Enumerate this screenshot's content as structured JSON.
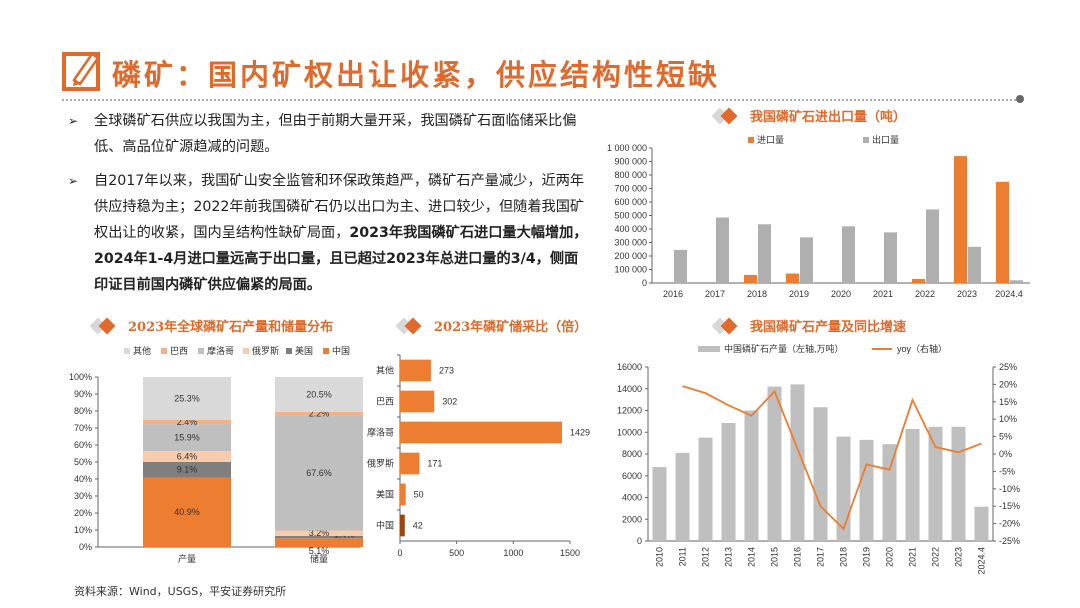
{
  "header": {
    "title": "磷矿：国内矿权出让收紧，供应结构性短缺",
    "icon": "pencil-checkbox-icon"
  },
  "bullets": [
    {
      "icon": "arrow-bullet-icon",
      "symbol": "➢",
      "text": "全球磷矿石供应以我国为主，但由于前期大量开采，我国磷矿石面临储采比偏低、高品位矿源趋减的问题。",
      "bold": ""
    },
    {
      "icon": "arrow-bullet-icon",
      "symbol": "➢",
      "text": "自2017年以来，我国矿山安全监管和环保政策趋严，磷矿石产量减少，近两年供应持稳为主；2022年前我国磷矿石仍以出口为主、进口较少，但随着我国矿权出让的收紧，国内呈结构性缺矿局面，",
      "bold": "2023年我国磷矿石进口量大幅增加，2024年1-4月进口量远高于出口量，且已超过2023年总进口量的3/4，侧面印证目前国内磷矿供应偏紧的局面。"
    }
  ],
  "source": "资料来源：Wind，USGS，平安证券研究所",
  "colors": {
    "accent": "#E0692B",
    "orange": "#ED7D31",
    "gray": "#BFBFBF"
  },
  "chart_data": [
    {
      "id": "trade",
      "type": "bar",
      "title": "我国磷矿石进出口量（吨）",
      "categories": [
        "2016",
        "2017",
        "2018",
        "2019",
        "2020",
        "2021",
        "2022",
        "2023",
        "2024.4"
      ],
      "series": [
        {
          "name": "进口量",
          "color": "#ED7D31",
          "values": [
            0,
            0,
            60000,
            70000,
            0,
            0,
            30000,
            940000,
            750000
          ]
        },
        {
          "name": "出口量",
          "color": "#AFAFAF",
          "values": [
            245000,
            485000,
            435000,
            338000,
            420000,
            375000,
            545000,
            268000,
            20000
          ]
        }
      ],
      "ylim": [
        0,
        1000000
      ],
      "yticks": [
        0,
        100000,
        200000,
        300000,
        400000,
        500000,
        600000,
        700000,
        800000,
        900000,
        1000000
      ],
      "legend": "top"
    },
    {
      "id": "share",
      "type": "bar",
      "stacked": true,
      "title": "2023年全球磷矿石产量和储量分布",
      "categories": [
        "产量",
        "储量"
      ],
      "series": [
        {
          "name": "中国",
          "color": "#ED7D31",
          "values": [
            40.9,
            5.1
          ]
        },
        {
          "name": "美国",
          "color": "#7F7F7F",
          "values": [
            9.1,
            1.4
          ]
        },
        {
          "name": "俄罗斯",
          "color": "#F8CBAD",
          "values": [
            6.4,
            3.2
          ]
        },
        {
          "name": "摩洛哥",
          "color": "#BFBFBF",
          "values": [
            15.9,
            67.6
          ]
        },
        {
          "name": "巴西",
          "color": "#F4B183",
          "values": [
            2.4,
            2.2
          ]
        },
        {
          "name": "其他",
          "color": "#D9D9D9",
          "values": [
            25.3,
            20.5
          ]
        }
      ],
      "ylim": [
        0,
        100
      ],
      "yticks": [
        "0%",
        "10%",
        "20%",
        "30%",
        "40%",
        "50%",
        "60%",
        "70%",
        "80%",
        "90%",
        "100%"
      ],
      "legend_order": [
        "其他",
        "巴西",
        "摩洛哥",
        "俄罗斯",
        "美国",
        "中国"
      ],
      "legend": "top"
    },
    {
      "id": "ratio",
      "type": "bar",
      "orientation": "horizontal",
      "title": "2023年磷矿储采比（倍）",
      "categories": [
        "其他",
        "巴西",
        "摩洛哥",
        "俄罗斯",
        "美国",
        "中国"
      ],
      "values": [
        273,
        302,
        1429,
        171,
        50,
        42
      ],
      "colors": [
        "#ED7D31",
        "#ED7D31",
        "#ED7D31",
        "#ED7D31",
        "#ED7D31",
        "#A0430F"
      ],
      "xlim": [
        0,
        1500
      ],
      "xticks": [
        0,
        500,
        1000,
        1500
      ]
    },
    {
      "id": "prod",
      "type": "bar+line",
      "title": "我国磷矿石产量及同比增速",
      "categories": [
        "2010",
        "2011",
        "2012",
        "2013",
        "2014",
        "2015",
        "2016",
        "2017",
        "2018",
        "2019",
        "2020",
        "2021",
        "2022",
        "2023",
        "2024.4"
      ],
      "series": [
        {
          "name": "中国磷矿石产量（左轴,万吨）",
          "type": "bar",
          "color": "#BFBFBF",
          "values": [
            6800,
            8100,
            9500,
            10850,
            12000,
            14200,
            14400,
            12300,
            9600,
            9300,
            8900,
            10300,
            10500,
            10500,
            3150
          ]
        },
        {
          "name": "yoy（右轴）",
          "type": "line",
          "color": "#ED7D31",
          "values": [
            null,
            19.5,
            17.5,
            14,
            11,
            18,
            1.5,
            -15,
            -21.5,
            -3,
            -4.5,
            15.5,
            2,
            0.5,
            3
          ]
        }
      ],
      "ylim": [
        0,
        16000
      ],
      "yticks": [
        0,
        2000,
        4000,
        6000,
        8000,
        10000,
        12000,
        14000,
        16000
      ],
      "y2lim": [
        -25,
        25
      ],
      "y2ticks": [
        "-25%",
        "-20%",
        "-15%",
        "-10%",
        "-5%",
        "0%",
        "5%",
        "10%",
        "15%",
        "20%",
        "25%"
      ],
      "legend": "top"
    }
  ]
}
